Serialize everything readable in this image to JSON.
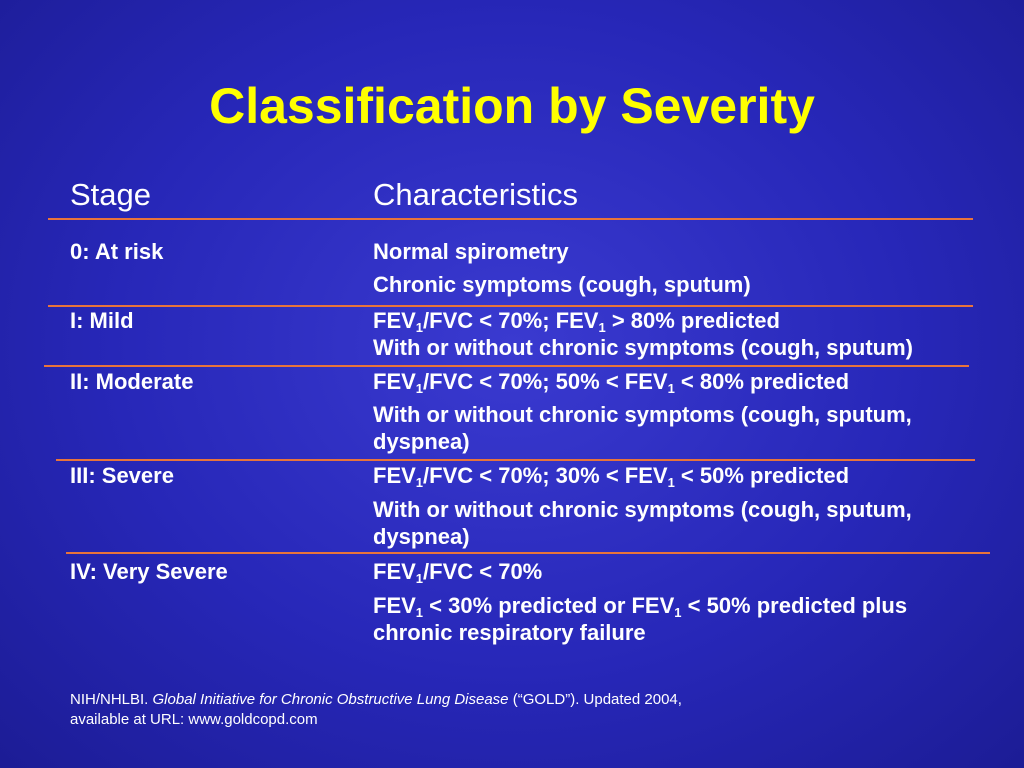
{
  "title": "Classification by Severity",
  "header": {
    "stage": "Stage",
    "characteristics": "Characteristics"
  },
  "rows": [
    {
      "stage": "0: At risk",
      "lines": [
        "Normal spirometry",
        "Chronic symptoms (cough, sputum)"
      ]
    },
    {
      "stage": "I:  Mild",
      "fev_a": "FEV",
      "fev_b": "/FVC < 70%; FEV",
      "fev_c": " > 80% predicted",
      "line2": "With or without chronic symptoms (cough, sputum)"
    },
    {
      "stage": "II: Moderate",
      "fev_a": "FEV",
      "fev_b": "/FVC < 70%; 50% < FEV",
      "fev_c": " < 80% predicted",
      "line2": "With or without chronic symptoms (cough, sputum,",
      "line3": "dyspnea)"
    },
    {
      "stage": "III: Severe",
      "fev_a": "FEV",
      "fev_b": "/FVC < 70%; 30% < FEV",
      "fev_c": " < 50% predicted",
      "line2": "With or without chronic symptoms (cough, sputum,",
      "line3": "dyspnea)"
    },
    {
      "stage": "IV: Very Severe",
      "fev_a": "FEV",
      "fev_b": "/FVC < 70%",
      "l2_a": "FEV",
      "l2_b": " < 30% predicted or FEV",
      "l2_c": " < 50% predicted plus",
      "line3": "chronic respiratory failure"
    }
  ],
  "subscript": "1",
  "footnote": {
    "prefix": "NIH/NHLBI. ",
    "italic": "Global Initiative for Chronic Obstructive Lung Disease",
    "suffix": " (“GOLD”).  Updated 2004,",
    "line2": "available at URL: www.goldcopd.com"
  },
  "colors": {
    "title": "#ffff00",
    "rule": "#e8743b",
    "text": "#ffffff",
    "background": "#2a2ab8"
  }
}
